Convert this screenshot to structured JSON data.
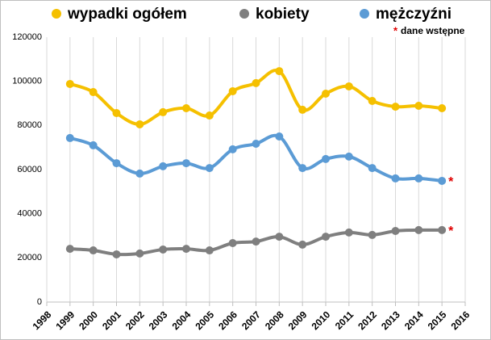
{
  "chart_data": {
    "type": "line",
    "x": [
      1999,
      2000,
      2001,
      2002,
      2003,
      2004,
      2005,
      2006,
      2007,
      2008,
      2009,
      2010,
      2011,
      2012,
      2013,
      2014,
      2015
    ],
    "series": [
      {
        "name": "wypadki ogółem",
        "color": "#f5c000",
        "values": [
          98800,
          95100,
          85600,
          80500,
          86000,
          87800,
          84500,
          95500,
          99200,
          104600,
          87100,
          94400,
          97700,
          91100,
          88500,
          88900,
          87800
        ]
      },
      {
        "name": "kobiety",
        "color": "#7f7f7f",
        "values": [
          24100,
          23400,
          21600,
          22000,
          23800,
          24100,
          23400,
          26700,
          27400,
          29600,
          26000,
          29600,
          31500,
          30400,
          32200,
          32600,
          32600
        ],
        "end_note": "*"
      },
      {
        "name": "mężczyźni",
        "color": "#5b9bd5",
        "values": [
          74300,
          71000,
          62900,
          58200,
          61500,
          62900,
          60700,
          69200,
          71700,
          75000,
          60700,
          64800,
          65900,
          60700,
          56000,
          56000,
          54900
        ],
        "end_note": "*"
      }
    ],
    "note_marker": "*",
    "note": "dane wstępne",
    "note_color": "#e00000",
    "xlim": [
      1998,
      2016
    ],
    "xticks": [
      1998,
      1999,
      2000,
      2001,
      2002,
      2003,
      2004,
      2005,
      2006,
      2007,
      2008,
      2009,
      2010,
      2011,
      2012,
      2013,
      2014,
      2015,
      2016
    ],
    "ylim": [
      0,
      120000
    ],
    "yticks": [
      0,
      20000,
      40000,
      60000,
      80000,
      100000,
      120000
    ],
    "grid": "x",
    "legend": "top"
  }
}
